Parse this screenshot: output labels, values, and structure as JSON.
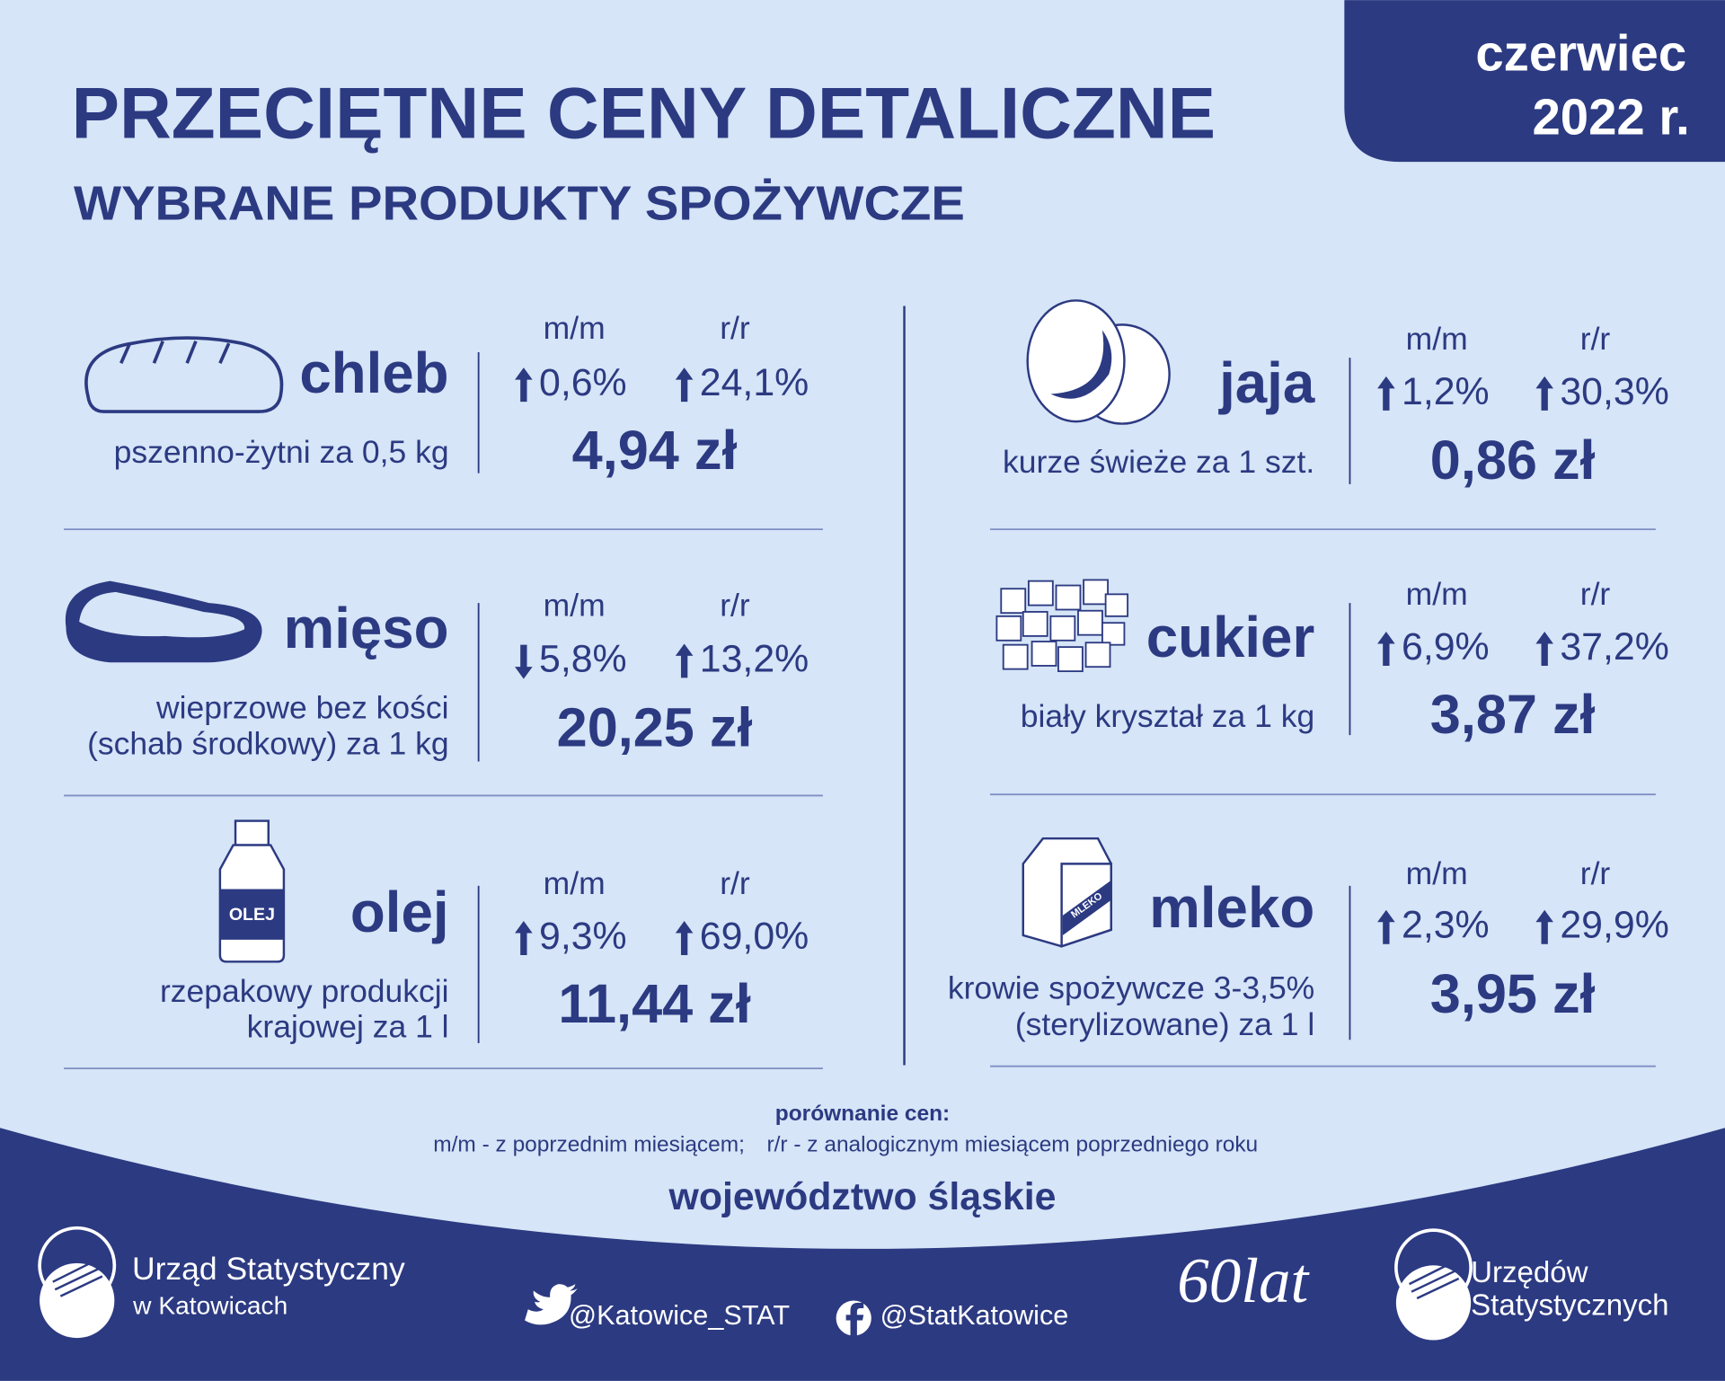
{
  "header": {
    "title": "PRZECIĘTNE CENY DETALICZNE",
    "subtitle": "WYBRANE PRODUKTY SPOŻYWCZE",
    "period_month": "czerwiec",
    "period_year": "2022 r."
  },
  "column_labels": {
    "mm": "m/m",
    "rr": "r/r"
  },
  "icon_labels": {
    "oil": "OLEJ",
    "milk": "MLEKO"
  },
  "products": [
    {
      "name": "chleb",
      "description": [
        "pszenno-żytni za 0,5 kg"
      ],
      "mm": {
        "value": "0,6%",
        "direction": "up"
      },
      "rr": {
        "value": "24,1%",
        "direction": "up"
      },
      "price": "4,94 zł"
    },
    {
      "name": "mięso",
      "description": [
        "wieprzowe bez kości",
        "(schab środkowy) za 1 kg"
      ],
      "mm": {
        "value": "5,8%",
        "direction": "down"
      },
      "rr": {
        "value": "13,2%",
        "direction": "up"
      },
      "price": "20,25 zł"
    },
    {
      "name": "olej",
      "description": [
        "rzepakowy produkcji",
        "krajowej za 1 l"
      ],
      "mm": {
        "value": "9,3%",
        "direction": "up"
      },
      "rr": {
        "value": "69,0%",
        "direction": "up"
      },
      "price": "11,44 zł"
    },
    {
      "name": "jaja",
      "description": [
        "kurze świeże za 1 szt."
      ],
      "mm": {
        "value": "1,2%",
        "direction": "up"
      },
      "rr": {
        "value": "30,3%",
        "direction": "up"
      },
      "price": "0,86 zł"
    },
    {
      "name": "cukier",
      "description": [
        "biały kryształ za 1 kg"
      ],
      "mm": {
        "value": "6,9%",
        "direction": "up"
      },
      "rr": {
        "value": "37,2%",
        "direction": "up"
      },
      "price": "3,87 zł"
    },
    {
      "name": "mleko",
      "description": [
        "krowie spożywcze 3-3,5%",
        "(sterylizowane) za 1 l"
      ],
      "mm": {
        "value": "2,3%",
        "direction": "up"
      },
      "rr": {
        "value": "29,9%",
        "direction": "up"
      },
      "price": "3,95 zł"
    }
  ],
  "legend": {
    "title": "porównanie cen:",
    "mm": "m/m - z poprzednim miesiącem;",
    "rr": "r/r - z analogicznym miesiącem poprzedniego roku"
  },
  "region": "województwo śląskie",
  "footer": {
    "office_line1": "Urząd Statystyczny",
    "office_line2": "w Katowicach",
    "twitter": "@Katowice_STAT",
    "facebook": "@StatKatowice",
    "anniversary": "60lat",
    "offices_line1": "Urzędów",
    "offices_line2": "Statystycznych"
  }
}
